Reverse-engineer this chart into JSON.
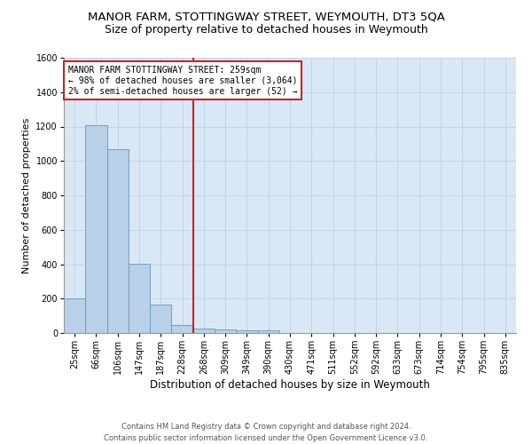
{
  "title": "MANOR FARM, STOTTINGWAY STREET, WEYMOUTH, DT3 5QA",
  "subtitle": "Size of property relative to detached houses in Weymouth",
  "xlabel": "Distribution of detached houses by size in Weymouth",
  "ylabel": "Number of detached properties",
  "categories": [
    "25sqm",
    "66sqm",
    "106sqm",
    "147sqm",
    "187sqm",
    "228sqm",
    "268sqm",
    "309sqm",
    "349sqm",
    "390sqm",
    "430sqm",
    "471sqm",
    "511sqm",
    "552sqm",
    "592sqm",
    "633sqm",
    "673sqm",
    "714sqm",
    "754sqm",
    "795sqm",
    "835sqm"
  ],
  "bar_heights": [
    200,
    1210,
    1070,
    405,
    165,
    45,
    28,
    22,
    16,
    13,
    0,
    0,
    0,
    0,
    0,
    0,
    0,
    0,
    0,
    0,
    0
  ],
  "bar_color": "#b8d0e8",
  "bar_edge_color": "#6699bb",
  "grid_color": "#c0d4e8",
  "background_color": "#d8e8f5",
  "vline_color": "#cc2222",
  "annotation_text": "MANOR FARM STOTTINGWAY STREET: 259sqm\n← 98% of detached houses are smaller (3,064)\n2% of semi-detached houses are larger (52) →",
  "annotation_box_color": "#ffffff",
  "annotation_box_edge": "#cc2222",
  "ylim": [
    0,
    1600
  ],
  "yticks": [
    0,
    200,
    400,
    600,
    800,
    1000,
    1200,
    1400,
    1600
  ],
  "footer": "Contains HM Land Registry data © Crown copyright and database right 2024.\nContains public sector information licensed under the Open Government Licence v3.0.",
  "title_fontsize": 9.5,
  "subtitle_fontsize": 9,
  "xlabel_fontsize": 8.5,
  "ylabel_fontsize": 8,
  "tick_fontsize": 7,
  "annotation_fontsize": 7,
  "footer_fontsize": 6
}
